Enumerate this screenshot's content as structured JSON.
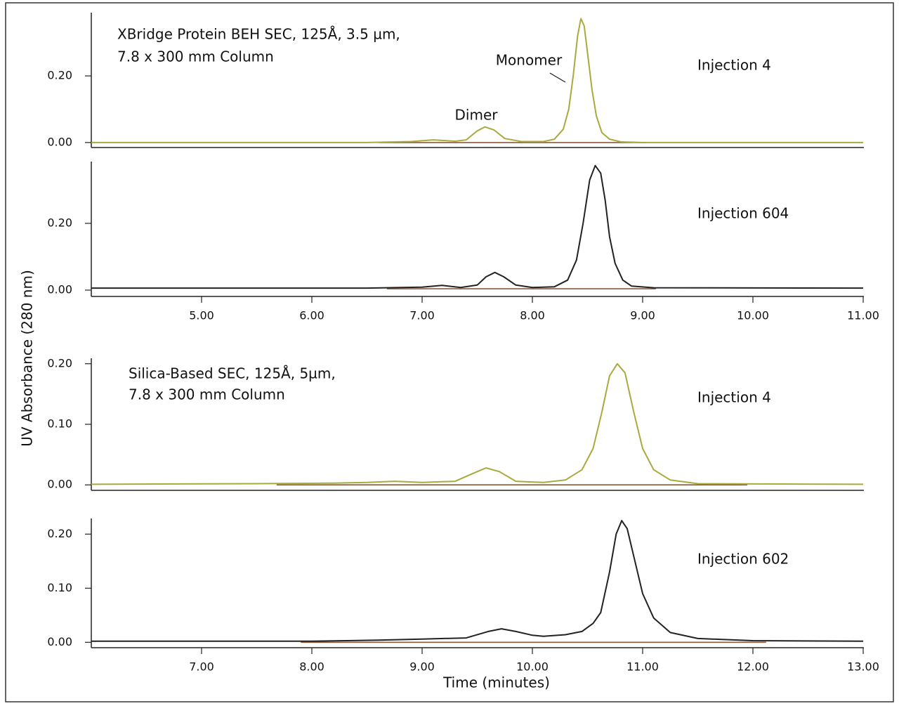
{
  "ylabel": "UV Absorbance (280 nm)",
  "xlabel": "Time (minutes)",
  "chart_data": [
    {
      "type": "line",
      "title": [
        "XBridge Protein BEH SEC, 125Å, 3.5 µm,",
        "7.8 x 300 mm Column"
      ],
      "label": "Injection 4",
      "annotations": [
        "Monomer",
        "Dimer"
      ],
      "xlim": [
        4,
        11
      ],
      "ylim": [
        -0.015,
        0.39
      ],
      "yticks": [
        {
          "value": 0,
          "label": "0.00"
        },
        {
          "value": 0.2,
          "label": "0.20"
        }
      ],
      "x": [
        4.0,
        6.5,
        6.9,
        7.1,
        7.3,
        7.4,
        7.5,
        7.57,
        7.65,
        7.75,
        7.9,
        8.1,
        8.2,
        8.28,
        8.33,
        8.37,
        8.41,
        8.44,
        8.47,
        8.5,
        8.54,
        8.58,
        8.63,
        8.7,
        8.8,
        9.0,
        11.0
      ],
      "series": [
        {
          "color": "#a8aa3c",
          "values": [
            0,
            0,
            0.003,
            0.008,
            0.004,
            0.008,
            0.035,
            0.047,
            0.038,
            0.012,
            0.003,
            0.003,
            0.01,
            0.04,
            0.1,
            0.2,
            0.32,
            0.372,
            0.35,
            0.27,
            0.16,
            0.08,
            0.03,
            0.01,
            0.002,
            0,
            0
          ]
        }
      ],
      "baseline": {
        "color": "#8b5a3c",
        "x": [
          6.6,
          9.03
        ],
        "values": [
          0,
          0
        ]
      }
    },
    {
      "type": "line",
      "label": "Injection 604",
      "xlim": [
        4,
        11
      ],
      "ylim": [
        -0.019,
        0.385
      ],
      "xticks": [
        {
          "value": 5,
          "label": "5.00"
        },
        {
          "value": 6,
          "label": "6.00"
        },
        {
          "value": 7,
          "label": "7.00"
        },
        {
          "value": 8,
          "label": "8.00"
        },
        {
          "value": 9,
          "label": "9.00"
        },
        {
          "value": 10,
          "label": "10.00"
        },
        {
          "value": 11,
          "label": "11.00"
        }
      ],
      "yticks": [
        {
          "value": 0,
          "label": "0.00"
        },
        {
          "value": 0.2,
          "label": "0.20"
        }
      ],
      "x": [
        4.0,
        6.5,
        7.0,
        7.18,
        7.35,
        7.5,
        7.58,
        7.66,
        7.74,
        7.85,
        8.0,
        8.2,
        8.32,
        8.4,
        8.46,
        8.52,
        8.57,
        8.62,
        8.66,
        8.7,
        8.75,
        8.82,
        8.9,
        9.1,
        11.0
      ],
      "series": [
        {
          "color": "#222222",
          "values": [
            0.006,
            0.006,
            0.009,
            0.014,
            0.008,
            0.015,
            0.04,
            0.053,
            0.04,
            0.015,
            0.008,
            0.01,
            0.03,
            0.09,
            0.2,
            0.33,
            0.373,
            0.35,
            0.27,
            0.16,
            0.08,
            0.03,
            0.012,
            0.007,
            0.006
          ]
        }
      ],
      "baseline": {
        "color": "#8b5a3c",
        "x": [
          6.68,
          9.12
        ],
        "values": [
          0.004,
          0.004
        ]
      }
    },
    {
      "type": "line",
      "title": [
        "Silica-Based SEC, 125Å, 5µm,",
        "7.8 x 300 mm Column"
      ],
      "label": "Injection 4",
      "xlim": [
        6,
        13
      ],
      "ylim": [
        -0.009,
        0.209
      ],
      "yticks": [
        {
          "value": 0,
          "label": "0.00"
        },
        {
          "value": 0.1,
          "label": "0.10"
        },
        {
          "value": 0.2,
          "label": "0.20"
        }
      ],
      "x": [
        6.0,
        7.5,
        8.2,
        8.5,
        8.75,
        9.0,
        9.3,
        9.45,
        9.58,
        9.7,
        9.85,
        10.1,
        10.3,
        10.45,
        10.55,
        10.63,
        10.7,
        10.77,
        10.84,
        10.92,
        11.0,
        11.1,
        11.25,
        11.5,
        13.0
      ],
      "series": [
        {
          "color": "#a8aa3c",
          "values": [
            0.001,
            0.002,
            0.003,
            0.004,
            0.006,
            0.004,
            0.006,
            0.018,
            0.028,
            0.022,
            0.006,
            0.004,
            0.008,
            0.025,
            0.06,
            0.12,
            0.18,
            0.2,
            0.185,
            0.12,
            0.06,
            0.025,
            0.008,
            0.002,
            0.001
          ]
        }
      ],
      "baseline": {
        "color": "#8b5a3c",
        "x": [
          7.68,
          11.95
        ],
        "values": [
          0,
          0
        ]
      }
    },
    {
      "type": "line",
      "label": "Injection 602",
      "xlim": [
        6,
        13
      ],
      "ylim": [
        -0.01,
        0.229
      ],
      "xticks": [
        {
          "value": 7,
          "label": "7.00"
        },
        {
          "value": 8,
          "label": "8.00"
        },
        {
          "value": 9,
          "label": "9.00"
        },
        {
          "value": 10,
          "label": "10.00"
        },
        {
          "value": 11,
          "label": "11.00"
        },
        {
          "value": 12,
          "label": "12.00"
        },
        {
          "value": 13,
          "label": "13.00"
        }
      ],
      "yticks": [
        {
          "value": 0,
          "label": "0.00"
        },
        {
          "value": 0.1,
          "label": "0.10"
        },
        {
          "value": 0.2,
          "label": "0.20"
        }
      ],
      "x": [
        6.0,
        8.0,
        8.6,
        9.0,
        9.4,
        9.6,
        9.72,
        9.85,
        10.0,
        10.1,
        10.3,
        10.45,
        10.55,
        10.62,
        10.7,
        10.76,
        10.81,
        10.86,
        10.93,
        11.0,
        11.1,
        11.25,
        11.5,
        12.0,
        13.0
      ],
      "series": [
        {
          "color": "#222222",
          "values": [
            0.002,
            0.002,
            0.004,
            0.006,
            0.008,
            0.02,
            0.025,
            0.02,
            0.013,
            0.011,
            0.014,
            0.02,
            0.035,
            0.055,
            0.13,
            0.2,
            0.225,
            0.21,
            0.15,
            0.09,
            0.045,
            0.018,
            0.007,
            0.003,
            0.002
          ]
        }
      ],
      "baseline": {
        "color": "#8b5a3c",
        "x": [
          7.9,
          12.12
        ],
        "values": [
          0,
          0
        ]
      }
    }
  ]
}
